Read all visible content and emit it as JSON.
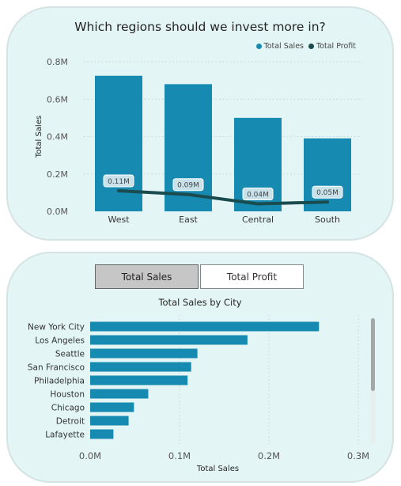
{
  "top_card": {
    "title": "Which regions should we invest more in?",
    "legend": [
      {
        "label": "Total Sales",
        "color": "#168ab0"
      },
      {
        "label": "Total Profit",
        "color": "#1a4c4f"
      }
    ]
  },
  "bottom_card": {
    "tabs": [
      {
        "label": "Total Sales",
        "active": true
      },
      {
        "label": "Total Profit",
        "active": false
      }
    ],
    "title": "Total Sales by City"
  },
  "chart_data": [
    {
      "type": "bar",
      "categories": [
        "West",
        "East",
        "Central",
        "South"
      ],
      "series": [
        {
          "name": "Total Sales",
          "values": [
            0.725,
            0.68,
            0.5,
            0.39
          ],
          "color": "#168ab0"
        },
        {
          "name": "Total Profit",
          "type": "line",
          "values": [
            0.11,
            0.09,
            0.04,
            0.05
          ],
          "labels": [
            "0.11M",
            "0.09M",
            "0.04M",
            "0.05M"
          ],
          "color": "#1a4c4f"
        }
      ],
      "xlabel": "",
      "ylabel": "Total Sales",
      "ylim": [
        0,
        0.8
      ],
      "yticks": [
        "0.0M",
        "0.2M",
        "0.4M",
        "0.6M",
        "0.8M"
      ],
      "grid": true,
      "legend": "top-right"
    },
    {
      "type": "bar",
      "orientation": "horizontal",
      "categories": [
        "New York City",
        "Los Angeles",
        "Seattle",
        "San Francisco",
        "Philadelphia",
        "Houston",
        "Chicago",
        "Detroit",
        "Lafayette"
      ],
      "values": [
        0.256,
        0.176,
        0.12,
        0.113,
        0.109,
        0.065,
        0.049,
        0.043,
        0.026
      ],
      "color": "#168ab0",
      "xlabel": "Total Sales",
      "ylabel": "",
      "xlim": [
        0,
        0.3
      ],
      "xticks": [
        "0.0M",
        "0.1M",
        "0.2M",
        "0.3M"
      ],
      "grid": true
    }
  ]
}
